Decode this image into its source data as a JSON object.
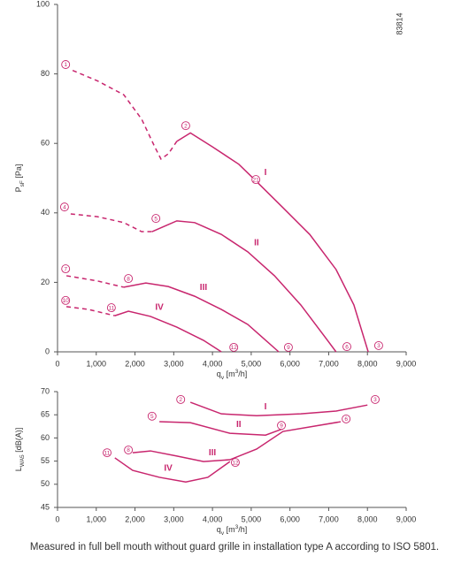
{
  "footnote": "Measured in full bell mouth without guard grille in installation type A according to ISO 5801.",
  "chart_data": [
    {
      "type": "line",
      "id_label": "83814",
      "color": "#c8266e",
      "xlabel": [
        {
          "text": "q"
        },
        {
          "text": "v",
          "shift": "sub"
        },
        {
          "text": " [m"
        },
        {
          "text": "3",
          "shift": "sup"
        },
        {
          "text": "/h]"
        }
      ],
      "ylabel": [
        {
          "text": "P"
        },
        {
          "text": "sF",
          "shift": "sub"
        },
        {
          "text": " [Pa]"
        }
      ],
      "xlim": [
        0,
        9000
      ],
      "ylim": [
        0,
        100
      ],
      "xticks": [
        0,
        {
          "value": 1000,
          "label": "1,000"
        },
        {
          "value": 2000,
          "label": "2,000"
        },
        {
          "value": 3000,
          "label": "3,000"
        },
        {
          "value": 4000,
          "label": "4,000"
        },
        {
          "value": 5000,
          "label": "5,000"
        },
        {
          "value": 6000,
          "label": "6,000"
        },
        {
          "value": 7000,
          "label": "7,000"
        },
        {
          "value": 8000,
          "label": "8,000"
        },
        {
          "value": 9000,
          "label": "9,000"
        }
      ],
      "yticks": [
        0,
        20,
        40,
        60,
        80,
        100
      ],
      "series": [
        {
          "name": "I",
          "dashed": {
            "x": [
              390,
              1030,
              1710,
              2170,
              2510,
              2670,
              2860,
              3080
            ],
            "y": [
              81,
              78,
              74,
              67,
              59,
              55.5,
              57,
              60.6
            ]
          },
          "x": [
            3080,
            3430,
            4000,
            4680,
            5140,
            5820,
            6510,
            7190,
            7650,
            8020
          ],
          "values": [
            60.6,
            63,
            59,
            54,
            49,
            41.5,
            33.8,
            23.7,
            13.5,
            0
          ]
        },
        {
          "name": "II",
          "dashed": {
            "x": [
              340,
              1030,
              1710,
              2170,
              2440
            ],
            "y": [
              39.7,
              38.9,
              37.2,
              34.6,
              34.6
            ]
          },
          "x": [
            2440,
            3080,
            3540,
            4230,
            4910,
            5600,
            6280,
            6970,
            7190
          ],
          "values": [
            34.6,
            37.7,
            37.2,
            33.8,
            28.8,
            21.9,
            13.5,
            3.3,
            0
          ]
        },
        {
          "name": "III",
          "dashed": {
            "x": [
              230,
              1030,
              1710
            ],
            "y": [
              21.9,
              20.4,
              18.6
            ]
          },
          "x": [
            1710,
            2280,
            2860,
            3540,
            4230,
            4910,
            5710
          ],
          "values": [
            18.6,
            19.8,
            18.8,
            16,
            12.2,
            7.9,
            0
          ]
        },
        {
          "name": "IV",
          "dashed": {
            "x": [
              230,
              800,
              1480
            ],
            "y": [
              13,
              12.2,
              10.4
            ]
          },
          "x": [
            1480,
            1830,
            2400,
            3080,
            3770,
            4230
          ],
          "values": [
            10.4,
            11.7,
            10.2,
            7.1,
            3.3,
            0
          ]
        }
      ],
      "points": [
        {
          "label": "1",
          "x": 210,
          "y": 82.7
        },
        {
          "label": "2",
          "x": 3310,
          "y": 65.1
        },
        {
          "label": "21",
          "x": 5120,
          "y": 49.6
        },
        {
          "label": "3",
          "x": 8290,
          "y": 1.8
        },
        {
          "label": "4",
          "x": 180,
          "y": 41.7
        },
        {
          "label": "5",
          "x": 2540,
          "y": 38.4
        },
        {
          "label": "6",
          "x": 7470,
          "y": 1.5
        },
        {
          "label": "7",
          "x": 210,
          "y": 23.9
        },
        {
          "label": "8",
          "x": 1830,
          "y": 21.1
        },
        {
          "label": "9",
          "x": 5960,
          "y": 1.3
        },
        {
          "label": "10",
          "x": 210,
          "y": 14.8
        },
        {
          "label": "11",
          "x": 1390,
          "y": 12.7
        },
        {
          "label": "12",
          "x": 4550,
          "y": 1.3
        }
      ]
    },
    {
      "type": "line",
      "color": "#c8266e",
      "xlabel": [
        {
          "text": "q"
        },
        {
          "text": "v",
          "shift": "sub"
        },
        {
          "text": " [m"
        },
        {
          "text": "3",
          "shift": "sup"
        },
        {
          "text": "/h]"
        }
      ],
      "ylabel": [
        {
          "text": "L"
        },
        {
          "text": "WA5",
          "shift": "sub"
        },
        {
          "text": " [dB(A)]"
        }
      ],
      "xlim": [
        0,
        9000
      ],
      "ylim": [
        45,
        70
      ],
      "xticks": [
        0,
        {
          "value": 1000,
          "label": "1,000"
        },
        {
          "value": 2000,
          "label": "2,000"
        },
        {
          "value": 3000,
          "label": "3,000"
        },
        {
          "value": 4000,
          "label": "4,000"
        },
        {
          "value": 5000,
          "label": "5,000"
        },
        {
          "value": 6000,
          "label": "6,000"
        },
        {
          "value": 7000,
          "label": "7,000"
        },
        {
          "value": 8000,
          "label": "8,000"
        },
        {
          "value": 9000,
          "label": "9,000"
        }
      ],
      "yticks": [
        45,
        50,
        55,
        60,
        65,
        70
      ],
      "series": [
        {
          "name": "I",
          "x": [
            3430,
            4230,
            5140,
            6280,
            7190,
            8000
          ],
          "values": [
            67.7,
            65.2,
            64.8,
            65.2,
            65.8,
            67.1
          ]
        },
        {
          "name": "II",
          "x": [
            2630,
            3430,
            4450,
            5370,
            5820
          ],
          "values": [
            63.5,
            63.3,
            61,
            60.6,
            62
          ]
        },
        {
          "name": "III",
          "x": [
            1940,
            2400,
            3080,
            3770,
            4450,
            5140,
            5820,
            7310
          ],
          "values": [
            56.8,
            57.2,
            56.1,
            54.9,
            55.3,
            57.6,
            61.4,
            63.5
          ]
        },
        {
          "name": "IV",
          "x": [
            1480,
            1940,
            2630,
            3310,
            3880,
            4450
          ],
          "values": [
            55.7,
            53,
            51.5,
            50.5,
            51.5,
            54.9
          ]
        }
      ],
      "points": [
        {
          "label": "2",
          "x": 3180,
          "y": 68.3
        },
        {
          "label": "3",
          "x": 8200,
          "y": 68.3
        },
        {
          "label": "5",
          "x": 2440,
          "y": 64.7
        },
        {
          "label": "9",
          "x": 5780,
          "y": 62.7
        },
        {
          "label": "8",
          "x": 1830,
          "y": 57.4
        },
        {
          "label": "6",
          "x": 7450,
          "y": 64.1
        },
        {
          "label": "11",
          "x": 1280,
          "y": 56.8
        },
        {
          "label": "12",
          "x": 4590,
          "y": 54.7
        }
      ]
    }
  ]
}
